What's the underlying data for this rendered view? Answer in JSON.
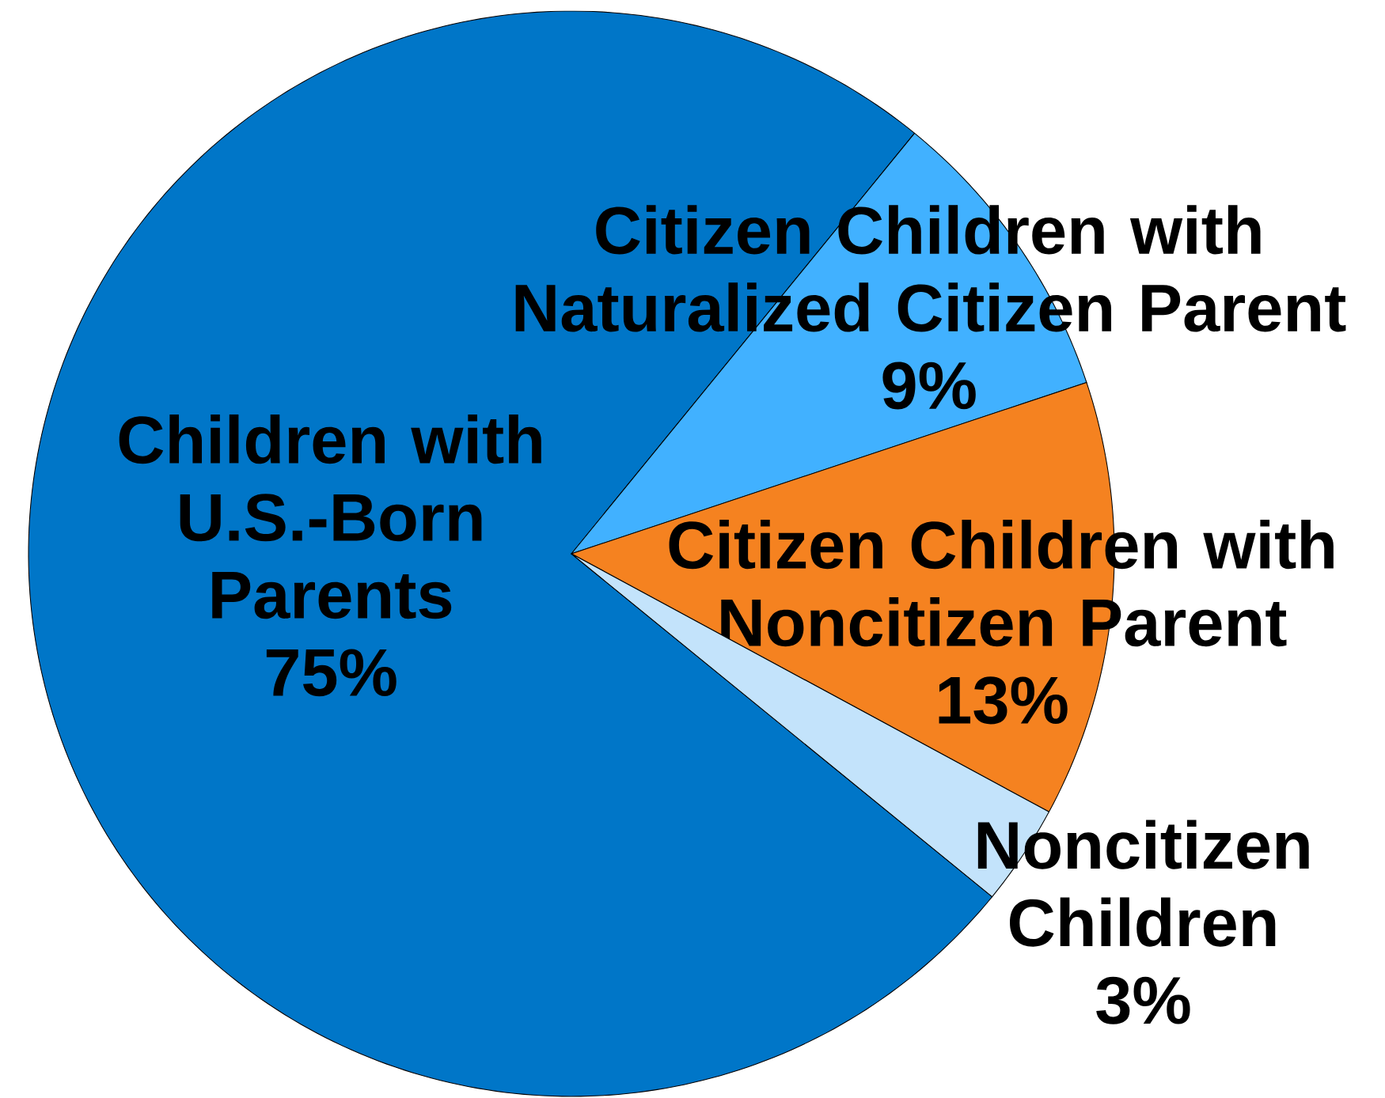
{
  "chart_data": {
    "type": "pie",
    "categories": [
      "Children with U.S.-Born Parents",
      "Citizen Children with Naturalized Citizen Parent",
      "Citizen Children with Noncitizen Parent",
      "Noncitizen Children"
    ],
    "values": [
      75,
      9,
      13,
      3
    ],
    "value_labels": [
      "75%",
      "9%",
      "13%",
      "3%"
    ],
    "colors": [
      "#0076C8",
      "#41B1FF",
      "#F58220",
      "#C3E3FB"
    ]
  }
}
